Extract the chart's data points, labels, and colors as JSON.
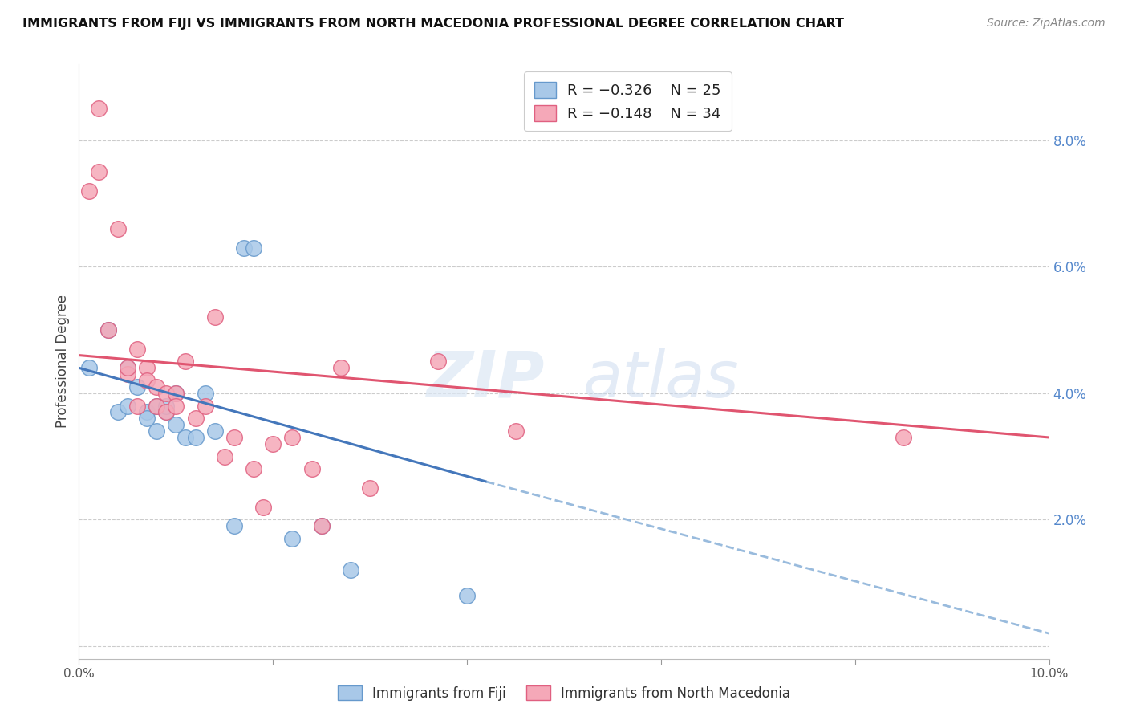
{
  "title": "IMMIGRANTS FROM FIJI VS IMMIGRANTS FROM NORTH MACEDONIA PROFESSIONAL DEGREE CORRELATION CHART",
  "source": "Source: ZipAtlas.com",
  "ylabel": "Professional Degree",
  "right_yticks": [
    0.0,
    0.02,
    0.04,
    0.06,
    0.08
  ],
  "right_yticklabels": [
    "",
    "2.0%",
    "4.0%",
    "6.0%",
    "8.0%"
  ],
  "bottom_xtick_positions": [
    0.0,
    0.02,
    0.04,
    0.06,
    0.08,
    0.1
  ],
  "bottom_xtick_labels": [
    "0.0%",
    "",
    "",
    "",
    "",
    "10.0%"
  ],
  "legend_fiji_r": "R = −0.326",
  "legend_fiji_n": "N = 25",
  "legend_mac_r": "R = −0.148",
  "legend_mac_n": "N = 34",
  "fiji_color": "#a8c8e8",
  "mac_color": "#f5a8b8",
  "fiji_edge": "#6699cc",
  "mac_edge": "#e06080",
  "trend_fiji_color": "#4477bb",
  "trend_mac_color": "#e05570",
  "trend_fiji_dashed_color": "#99bbdd",
  "watermark_zip": "ZIP",
  "watermark_atlas": "atlas",
  "fiji_scatter_x": [
    0.001,
    0.003,
    0.004,
    0.005,
    0.005,
    0.006,
    0.007,
    0.007,
    0.008,
    0.008,
    0.009,
    0.009,
    0.01,
    0.01,
    0.011,
    0.012,
    0.013,
    0.014,
    0.016,
    0.017,
    0.018,
    0.022,
    0.025,
    0.028,
    0.04
  ],
  "fiji_scatter_y": [
    0.044,
    0.05,
    0.037,
    0.044,
    0.038,
    0.041,
    0.037,
    0.036,
    0.038,
    0.034,
    0.037,
    0.038,
    0.04,
    0.035,
    0.033,
    0.033,
    0.04,
    0.034,
    0.019,
    0.063,
    0.063,
    0.017,
    0.019,
    0.012,
    0.008
  ],
  "mac_scatter_x": [
    0.001,
    0.002,
    0.002,
    0.003,
    0.004,
    0.005,
    0.005,
    0.006,
    0.006,
    0.007,
    0.007,
    0.008,
    0.008,
    0.009,
    0.009,
    0.01,
    0.01,
    0.011,
    0.012,
    0.013,
    0.014,
    0.015,
    0.016,
    0.018,
    0.019,
    0.02,
    0.022,
    0.024,
    0.025,
    0.027,
    0.03,
    0.037,
    0.045,
    0.085
  ],
  "mac_scatter_y": [
    0.072,
    0.085,
    0.075,
    0.05,
    0.066,
    0.043,
    0.044,
    0.047,
    0.038,
    0.044,
    0.042,
    0.038,
    0.041,
    0.04,
    0.037,
    0.04,
    0.038,
    0.045,
    0.036,
    0.038,
    0.052,
    0.03,
    0.033,
    0.028,
    0.022,
    0.032,
    0.033,
    0.028,
    0.019,
    0.044,
    0.025,
    0.045,
    0.034,
    0.033
  ],
  "xlim": [
    0.0,
    0.1
  ],
  "ylim": [
    -0.002,
    0.092
  ],
  "fiji_trend_x0": 0.0,
  "fiji_trend_x1": 0.042,
  "fiji_trend_y0": 0.044,
  "fiji_trend_y1": 0.026,
  "fiji_trend_dashed_x0": 0.042,
  "fiji_trend_dashed_x1": 0.1,
  "fiji_trend_dashed_y0": 0.026,
  "fiji_trend_dashed_y1": 0.002,
  "mac_trend_x0": 0.0,
  "mac_trend_x1": 0.1,
  "mac_trend_y0": 0.046,
  "mac_trend_y1": 0.033
}
